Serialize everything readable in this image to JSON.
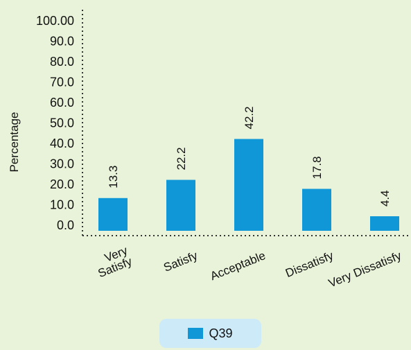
{
  "chart_data": {
    "type": "bar",
    "categories": [
      [
        "Very",
        "Satisfy"
      ],
      [
        "Satisfy"
      ],
      [
        "Acceptable"
      ],
      [
        "Dissatisfy"
      ],
      [
        "Very Dissatisfy"
      ]
    ],
    "series": [
      {
        "name": "Q39",
        "values": [
          13.3,
          22.2,
          42.2,
          17.8,
          4.4
        ],
        "color": "#0f97d8"
      }
    ],
    "value_labels": [
      "13.3",
      "22.2",
      "42.2",
      "17.8",
      "4.4"
    ],
    "yticks": [
      "0.0",
      "10.0",
      "20.0",
      "30.0",
      "40.0",
      "50.0",
      "60.0",
      "70.0",
      "80.0",
      "90.0",
      "100.00"
    ],
    "ylim": [
      0,
      100
    ],
    "ylabel": "Percentage",
    "xlabel": "",
    "title": "",
    "grid": false,
    "legend_position": "bottom-center"
  },
  "legend": {
    "label": "Q39"
  },
  "colors": {
    "background": "#e9f3d9",
    "bar": "#0f97d8",
    "legend_background": "#cdeaf8"
  }
}
